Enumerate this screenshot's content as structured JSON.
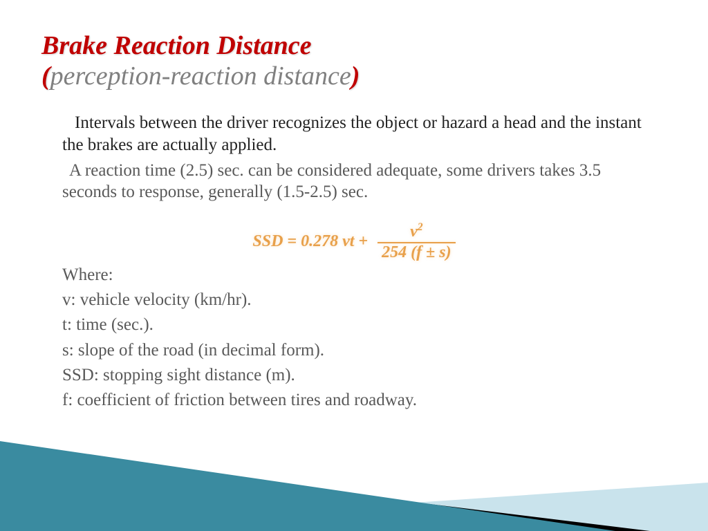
{
  "title": {
    "main": "Brake Reaction Distance",
    "paren_open": "(",
    "sub": "perception-reaction distance",
    "paren_close": ")",
    "main_color": "#c00000",
    "sub_color": "#808080",
    "fontsize": 38
  },
  "body": {
    "para1": "Intervals between the driver recognizes the object or hazard a head and the instant the brakes are actually applied.",
    "para2": "A reaction time (2.5) sec. can be considered adequate, some drivers takes 3.5 seconds to response, generally (1.5-2.5) sec.",
    "para1_color": "#222222",
    "para2_color": "#595959",
    "fontsize": 25
  },
  "formula": {
    "left": "SSD = 0.278 vt +",
    "numerator": "v",
    "num_exp": "2",
    "denominator": "254 (f ± s)",
    "color": "#e8a04a",
    "fontsize": 24
  },
  "where": {
    "heading": "Where:",
    "lines": [
      "v: vehicle velocity (km/hr).",
      "t: time (sec.).",
      "s: slope of the road (in decimal form).",
      "SSD:  stopping sight distance (m).",
      "f: coefficient of friction between tires and roadway."
    ],
    "color": "#595959",
    "fontsize": 25
  },
  "decoration": {
    "teal": "#3a8ba0",
    "black": "#000000",
    "lightblue": "#c9e3ec"
  }
}
